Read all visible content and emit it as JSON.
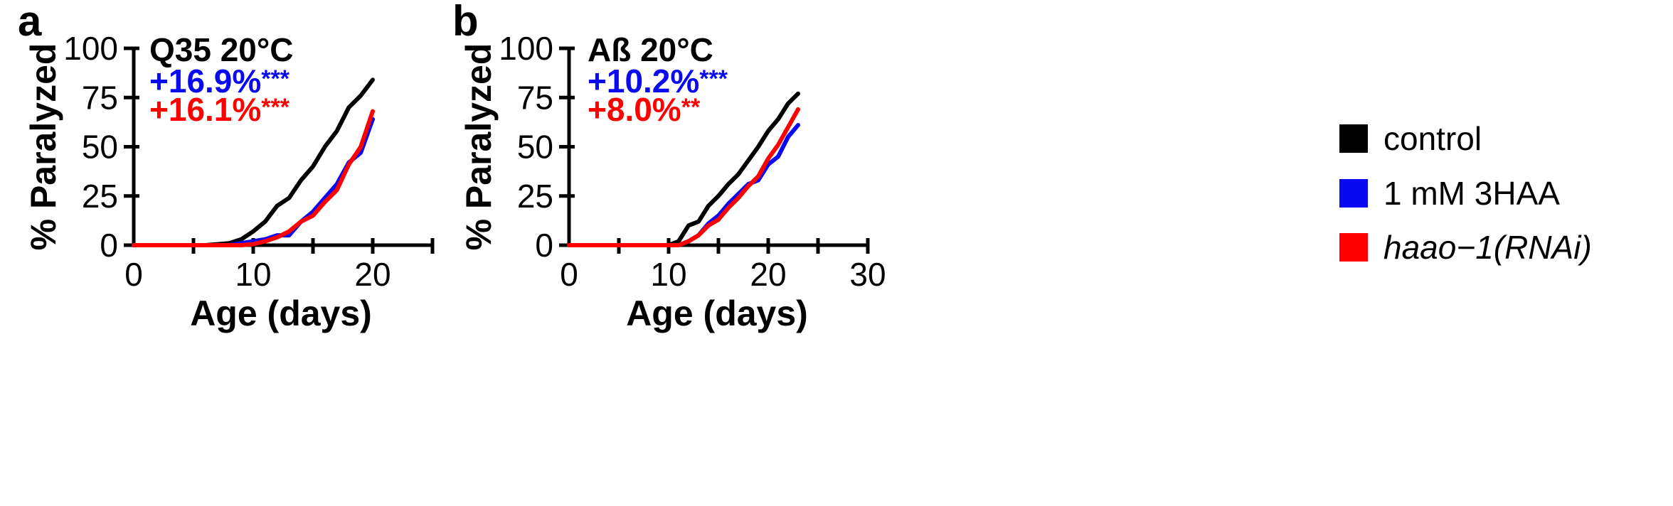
{
  "colors": {
    "control": "#000000",
    "3haa": "#0a0af0",
    "rnai": "#ff0000"
  },
  "legend": [
    {
      "label": "control",
      "color": "#000000",
      "italic": false
    },
    {
      "label": "1 mM 3HAA",
      "color": "#0a0af0",
      "italic": false
    },
    {
      "label": "haao−1(RNAi)",
      "color": "#ff0000",
      "italic": true
    }
  ],
  "chart_data": [
    {
      "type": "line",
      "panel_label": "a",
      "xlabel": "Age (days)",
      "ylabel": "% Paralyzed",
      "xlim": [
        0,
        25
      ],
      "ylim": [
        0,
        100
      ],
      "x_ticks": [
        0,
        10,
        20
      ],
      "y_ticks": [
        0,
        25,
        50,
        75,
        100
      ],
      "grid": false,
      "legend_position": "right",
      "annotations": [
        {
          "text": "Q35 20°C",
          "color": "#000000",
          "superscript": ""
        },
        {
          "text": "+16.9%",
          "color": "#0a0af0",
          "superscript": "***"
        },
        {
          "text": "+16.1%",
          "color": "#ff0000",
          "superscript": "***"
        }
      ],
      "series": [
        {
          "name": "control",
          "color": "#000000",
          "x": [
            0,
            1,
            2,
            3,
            4,
            5,
            6,
            7,
            8,
            9,
            10,
            11,
            12,
            13,
            14,
            15,
            16,
            17,
            18,
            19,
            20
          ],
          "y": [
            0,
            0,
            0,
            0,
            0,
            0,
            0,
            0.5,
            1,
            3,
            7,
            12,
            20,
            24,
            33,
            40,
            50,
            58,
            70,
            76,
            84
          ]
        },
        {
          "name": "1 mM 3HAA",
          "color": "#0a0af0",
          "x": [
            0,
            1,
            2,
            3,
            4,
            5,
            6,
            7,
            8,
            9,
            10,
            11,
            12,
            13,
            14,
            15,
            16,
            17,
            18,
            19,
            20
          ],
          "y": [
            0,
            0,
            0,
            0,
            0,
            0,
            0,
            0,
            0,
            1,
            2,
            3,
            5,
            5,
            12,
            17,
            24,
            31,
            42,
            47,
            64
          ]
        },
        {
          "name": "haao−1(RNAi)",
          "color": "#ff0000",
          "x": [
            0,
            1,
            2,
            3,
            4,
            5,
            6,
            7,
            8,
            9,
            10,
            11,
            12,
            13,
            14,
            15,
            16,
            17,
            18,
            19,
            20
          ],
          "y": [
            0,
            0,
            0,
            0,
            0,
            0,
            0,
            0,
            0,
            0,
            0.5,
            2,
            4,
            7,
            12,
            15,
            22,
            28,
            41,
            50,
            68
          ]
        }
      ]
    },
    {
      "type": "line",
      "panel_label": "b",
      "xlabel": "Age (days)",
      "ylabel": "% Paralyzed",
      "xlim": [
        0,
        30
      ],
      "ylim": [
        0,
        100
      ],
      "x_ticks": [
        0,
        10,
        20,
        30
      ],
      "y_ticks": [
        0,
        25,
        50,
        75,
        100
      ],
      "grid": false,
      "legend_position": "right",
      "annotations": [
        {
          "text": "Aß 20°C",
          "color": "#000000",
          "superscript": ""
        },
        {
          "text": "+10.2%",
          "color": "#0a0af0",
          "superscript": "***"
        },
        {
          "text": "+8.0%",
          "color": "#ff0000",
          "superscript": "**"
        }
      ],
      "series": [
        {
          "name": "control",
          "color": "#000000",
          "x": [
            0,
            2,
            4,
            6,
            8,
            10,
            11,
            12,
            13,
            14,
            15,
            16,
            17,
            18,
            19,
            20,
            21,
            22,
            23
          ],
          "y": [
            0,
            0,
            0,
            0,
            0,
            0,
            2,
            10,
            12,
            20,
            25,
            31,
            36,
            43,
            50,
            58,
            64,
            72,
            77
          ]
        },
        {
          "name": "1 mM 3HAA",
          "color": "#0a0af0",
          "x": [
            0,
            2,
            4,
            6,
            8,
            10,
            11,
            12,
            13,
            14,
            15,
            16,
            17,
            18,
            19,
            20,
            21,
            22,
            23
          ],
          "y": [
            0,
            0,
            0,
            0,
            0,
            0,
            0,
            2,
            5,
            11,
            15,
            21,
            26,
            31,
            33,
            41,
            45,
            55,
            61
          ]
        },
        {
          "name": "haao−1(RNAi)",
          "color": "#ff0000",
          "x": [
            0,
            2,
            4,
            6,
            8,
            10,
            11,
            12,
            13,
            14,
            15,
            16,
            17,
            18,
            19,
            20,
            21,
            22,
            23
          ],
          "y": [
            0,
            0,
            0,
            0,
            0,
            0,
            0,
            2,
            5,
            10,
            13,
            19,
            24,
            30,
            35,
            44,
            51,
            60,
            69
          ]
        }
      ]
    }
  ]
}
